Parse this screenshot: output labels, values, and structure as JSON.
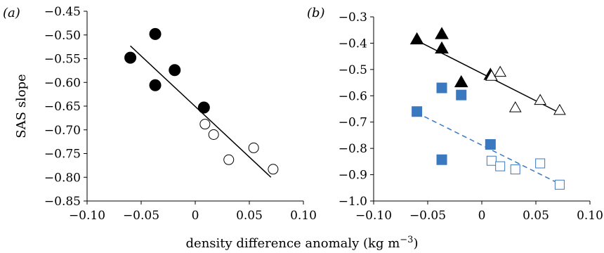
{
  "chart_data": [
    {
      "type": "scatter",
      "panel_label": "(a)",
      "ylabel": "SAS slope",
      "xlim": [
        -0.1,
        0.1
      ],
      "ylim": [
        -0.85,
        -0.45
      ],
      "x_ticks": [
        "−0.10",
        "−0.05",
        "0",
        "0.05",
        "0.10"
      ],
      "x_tick_values": [
        -0.1,
        -0.05,
        0,
        0.05,
        0.1
      ],
      "y_ticks": [
        "−0.45",
        "−0.50",
        "−0.55",
        "−0.60",
        "−0.65",
        "−0.70",
        "−0.75",
        "−0.80",
        "−0.85"
      ],
      "y_tick_values": [
        -0.45,
        -0.5,
        -0.55,
        -0.6,
        -0.65,
        -0.7,
        -0.75,
        -0.8,
        -0.85
      ],
      "grid": false,
      "series": [
        {
          "marker": "circle",
          "filled": true,
          "color": "#000000",
          "points": [
            {
              "x": -0.06,
              "y": -0.548
            },
            {
              "x": -0.037,
              "y": -0.498
            },
            {
              "x": -0.037,
              "y": -0.606
            },
            {
              "x": -0.019,
              "y": -0.574
            },
            {
              "x": 0.008,
              "y": -0.653
            }
          ]
        },
        {
          "marker": "circle",
          "filled": false,
          "color": "#000000",
          "points": [
            {
              "x": 0.009,
              "y": -0.688
            },
            {
              "x": 0.017,
              "y": -0.71
            },
            {
              "x": 0.031,
              "y": -0.763
            },
            {
              "x": 0.054,
              "y": -0.738
            },
            {
              "x": 0.072,
              "y": -0.783
            }
          ]
        }
      ],
      "fit_lines": [
        {
          "x": [
            -0.06,
            0.07
          ],
          "y": [
            -0.523,
            -0.8
          ],
          "color": "#000000",
          "style": "solid"
        }
      ]
    },
    {
      "type": "scatter",
      "panel_label": "(b)",
      "ylabel": "",
      "xlim": [
        -0.1,
        0.1
      ],
      "ylim": [
        -1.0,
        -0.3
      ],
      "x_ticks": [
        "−0.10",
        "−0.05",
        "0",
        "0.05",
        "0.10"
      ],
      "x_tick_values": [
        -0.1,
        -0.05,
        0,
        0.05,
        0.1
      ],
      "y_ticks": [
        "−0.3",
        "−0.4",
        "−0.5",
        "−0.6",
        "−0.7",
        "−0.8",
        "−0.9",
        "−1.0"
      ],
      "y_tick_values": [
        -0.3,
        -0.4,
        -0.5,
        -0.6,
        -0.7,
        -0.8,
        -0.9,
        -1.0
      ],
      "grid": false,
      "series": [
        {
          "marker": "triangle",
          "filled": true,
          "color": "#000000",
          "points": [
            {
              "x": -0.06,
              "y": -0.385
            },
            {
              "x": -0.037,
              "y": -0.365
            },
            {
              "x": -0.037,
              "y": -0.42
            },
            {
              "x": -0.019,
              "y": -0.548
            },
            {
              "x": 0.008,
              "y": -0.52
            }
          ]
        },
        {
          "marker": "triangle",
          "filled": false,
          "color": "#000000",
          "points": [
            {
              "x": 0.009,
              "y": -0.525
            },
            {
              "x": 0.017,
              "y": -0.51
            },
            {
              "x": 0.031,
              "y": -0.645
            },
            {
              "x": 0.054,
              "y": -0.617
            },
            {
              "x": 0.072,
              "y": -0.655
            }
          ]
        },
        {
          "marker": "square",
          "filled": true,
          "color": "#3a78c0",
          "points": [
            {
              "x": -0.06,
              "y": -0.66
            },
            {
              "x": -0.037,
              "y": -0.57
            },
            {
              "x": -0.037,
              "y": -0.843
            },
            {
              "x": -0.019,
              "y": -0.597
            },
            {
              "x": 0.008,
              "y": -0.785
            }
          ]
        },
        {
          "marker": "square",
          "filled": false,
          "color": "#3a78c0",
          "points": [
            {
              "x": 0.009,
              "y": -0.847
            },
            {
              "x": 0.017,
              "y": -0.868
            },
            {
              "x": 0.031,
              "y": -0.88
            },
            {
              "x": 0.054,
              "y": -0.857
            },
            {
              "x": 0.072,
              "y": -0.938
            }
          ]
        }
      ],
      "fit_lines": [
        {
          "x": [
            -0.06,
            0.072
          ],
          "y": [
            -0.39,
            -0.665
          ],
          "color": "#000000",
          "style": "solid"
        },
        {
          "x": [
            -0.06,
            0.072
          ],
          "y": [
            -0.665,
            -0.935
          ],
          "color": "#3a78c0",
          "style": "dashed"
        }
      ]
    }
  ],
  "shared_xlabel": "density difference anomaly (kg m",
  "shared_xlabel_sup": "−3",
  "shared_xlabel_end": ")"
}
